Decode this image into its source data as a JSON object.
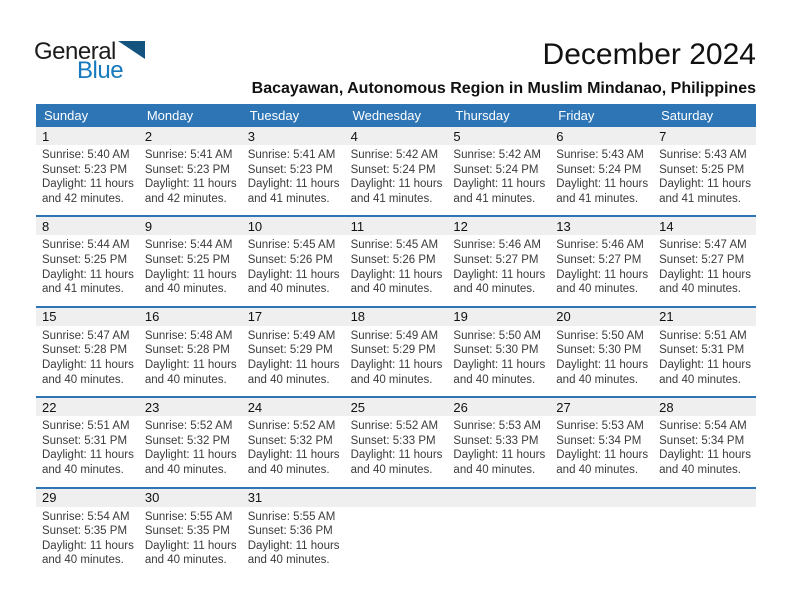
{
  "logo": {
    "line1": "General",
    "line2": "Blue",
    "accent_color": "#1779be",
    "triangle_color": "#15537f"
  },
  "header": {
    "title": "December 2024",
    "subtitle": "Bacayawan, Autonomous Region in Muslim Mindanao, Philippines"
  },
  "calendar": {
    "colors": {
      "weekday_header_bg": "#2e75b5",
      "week_separator": "#2e75b6",
      "day_number_band_bg": "#efefef"
    },
    "weekdays": [
      "Sunday",
      "Monday",
      "Tuesday",
      "Wednesday",
      "Thursday",
      "Friday",
      "Saturday"
    ],
    "weeks": [
      {
        "days": [
          {
            "day": "1",
            "sunrise": "Sunrise: 5:40 AM",
            "sunset": "Sunset: 5:23 PM",
            "daylight1": "Daylight: 11 hours",
            "daylight2": "and 42 minutes."
          },
          {
            "day": "2",
            "sunrise": "Sunrise: 5:41 AM",
            "sunset": "Sunset: 5:23 PM",
            "daylight1": "Daylight: 11 hours",
            "daylight2": "and 42 minutes."
          },
          {
            "day": "3",
            "sunrise": "Sunrise: 5:41 AM",
            "sunset": "Sunset: 5:23 PM",
            "daylight1": "Daylight: 11 hours",
            "daylight2": "and 41 minutes."
          },
          {
            "day": "4",
            "sunrise": "Sunrise: 5:42 AM",
            "sunset": "Sunset: 5:24 PM",
            "daylight1": "Daylight: 11 hours",
            "daylight2": "and 41 minutes."
          },
          {
            "day": "5",
            "sunrise": "Sunrise: 5:42 AM",
            "sunset": "Sunset: 5:24 PM",
            "daylight1": "Daylight: 11 hours",
            "daylight2": "and 41 minutes."
          },
          {
            "day": "6",
            "sunrise": "Sunrise: 5:43 AM",
            "sunset": "Sunset: 5:24 PM",
            "daylight1": "Daylight: 11 hours",
            "daylight2": "and 41 minutes."
          },
          {
            "day": "7",
            "sunrise": "Sunrise: 5:43 AM",
            "sunset": "Sunset: 5:25 PM",
            "daylight1": "Daylight: 11 hours",
            "daylight2": "and 41 minutes."
          }
        ]
      },
      {
        "days": [
          {
            "day": "8",
            "sunrise": "Sunrise: 5:44 AM",
            "sunset": "Sunset: 5:25 PM",
            "daylight1": "Daylight: 11 hours",
            "daylight2": "and 41 minutes."
          },
          {
            "day": "9",
            "sunrise": "Sunrise: 5:44 AM",
            "sunset": "Sunset: 5:25 PM",
            "daylight1": "Daylight: 11 hours",
            "daylight2": "and 40 minutes."
          },
          {
            "day": "10",
            "sunrise": "Sunrise: 5:45 AM",
            "sunset": "Sunset: 5:26 PM",
            "daylight1": "Daylight: 11 hours",
            "daylight2": "and 40 minutes."
          },
          {
            "day": "11",
            "sunrise": "Sunrise: 5:45 AM",
            "sunset": "Sunset: 5:26 PM",
            "daylight1": "Daylight: 11 hours",
            "daylight2": "and 40 minutes."
          },
          {
            "day": "12",
            "sunrise": "Sunrise: 5:46 AM",
            "sunset": "Sunset: 5:27 PM",
            "daylight1": "Daylight: 11 hours",
            "daylight2": "and 40 minutes."
          },
          {
            "day": "13",
            "sunrise": "Sunrise: 5:46 AM",
            "sunset": "Sunset: 5:27 PM",
            "daylight1": "Daylight: 11 hours",
            "daylight2": "and 40 minutes."
          },
          {
            "day": "14",
            "sunrise": "Sunrise: 5:47 AM",
            "sunset": "Sunset: 5:27 PM",
            "daylight1": "Daylight: 11 hours",
            "daylight2": "and 40 minutes."
          }
        ]
      },
      {
        "days": [
          {
            "day": "15",
            "sunrise": "Sunrise: 5:47 AM",
            "sunset": "Sunset: 5:28 PM",
            "daylight1": "Daylight: 11 hours",
            "daylight2": "and 40 minutes."
          },
          {
            "day": "16",
            "sunrise": "Sunrise: 5:48 AM",
            "sunset": "Sunset: 5:28 PM",
            "daylight1": "Daylight: 11 hours",
            "daylight2": "and 40 minutes."
          },
          {
            "day": "17",
            "sunrise": "Sunrise: 5:49 AM",
            "sunset": "Sunset: 5:29 PM",
            "daylight1": "Daylight: 11 hours",
            "daylight2": "and 40 minutes."
          },
          {
            "day": "18",
            "sunrise": "Sunrise: 5:49 AM",
            "sunset": "Sunset: 5:29 PM",
            "daylight1": "Daylight: 11 hours",
            "daylight2": "and 40 minutes."
          },
          {
            "day": "19",
            "sunrise": "Sunrise: 5:50 AM",
            "sunset": "Sunset: 5:30 PM",
            "daylight1": "Daylight: 11 hours",
            "daylight2": "and 40 minutes."
          },
          {
            "day": "20",
            "sunrise": "Sunrise: 5:50 AM",
            "sunset": "Sunset: 5:30 PM",
            "daylight1": "Daylight: 11 hours",
            "daylight2": "and 40 minutes."
          },
          {
            "day": "21",
            "sunrise": "Sunrise: 5:51 AM",
            "sunset": "Sunset: 5:31 PM",
            "daylight1": "Daylight: 11 hours",
            "daylight2": "and 40 minutes."
          }
        ]
      },
      {
        "days": [
          {
            "day": "22",
            "sunrise": "Sunrise: 5:51 AM",
            "sunset": "Sunset: 5:31 PM",
            "daylight1": "Daylight: 11 hours",
            "daylight2": "and 40 minutes."
          },
          {
            "day": "23",
            "sunrise": "Sunrise: 5:52 AM",
            "sunset": "Sunset: 5:32 PM",
            "daylight1": "Daylight: 11 hours",
            "daylight2": "and 40 minutes."
          },
          {
            "day": "24",
            "sunrise": "Sunrise: 5:52 AM",
            "sunset": "Sunset: 5:32 PM",
            "daylight1": "Daylight: 11 hours",
            "daylight2": "and 40 minutes."
          },
          {
            "day": "25",
            "sunrise": "Sunrise: 5:52 AM",
            "sunset": "Sunset: 5:33 PM",
            "daylight1": "Daylight: 11 hours",
            "daylight2": "and 40 minutes."
          },
          {
            "day": "26",
            "sunrise": "Sunrise: 5:53 AM",
            "sunset": "Sunset: 5:33 PM",
            "daylight1": "Daylight: 11 hours",
            "daylight2": "and 40 minutes."
          },
          {
            "day": "27",
            "sunrise": "Sunrise: 5:53 AM",
            "sunset": "Sunset: 5:34 PM",
            "daylight1": "Daylight: 11 hours",
            "daylight2": "and 40 minutes."
          },
          {
            "day": "28",
            "sunrise": "Sunrise: 5:54 AM",
            "sunset": "Sunset: 5:34 PM",
            "daylight1": "Daylight: 11 hours",
            "daylight2": "and 40 minutes."
          }
        ]
      },
      {
        "days": [
          {
            "day": "29",
            "sunrise": "Sunrise: 5:54 AM",
            "sunset": "Sunset: 5:35 PM",
            "daylight1": "Daylight: 11 hours",
            "daylight2": "and 40 minutes."
          },
          {
            "day": "30",
            "sunrise": "Sunrise: 5:55 AM",
            "sunset": "Sunset: 5:35 PM",
            "daylight1": "Daylight: 11 hours",
            "daylight2": "and 40 minutes."
          },
          {
            "day": "31",
            "sunrise": "Sunrise: 5:55 AM",
            "sunset": "Sunset: 5:36 PM",
            "daylight1": "Daylight: 11 hours",
            "daylight2": "and 40 minutes."
          },
          null,
          null,
          null,
          null
        ]
      }
    ]
  }
}
